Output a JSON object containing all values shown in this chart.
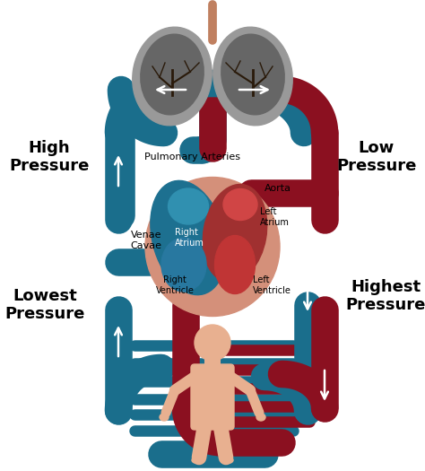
{
  "bg_color": "#ffffff",
  "teal": "#1a6e8c",
  "teal_light": "#2a8aaa",
  "dark_red": "#8b1020",
  "heart_pink": "#d4907a",
  "heart_red": "#c04040",
  "lung_outer": "#999999",
  "lung_inner": "#666666",
  "body_skin": "#e8b090",
  "white": "#ffffff",
  "labels": {
    "high_pressure": "High\nPressure",
    "low_pressure": "Low\nPressure",
    "lowest_pressure": "Lowest\nPressure",
    "highest_pressure": "Highest\nPressure",
    "pulmonary_arteries": "Pulmonary Arteries",
    "venae_cavae": "Venae\nCavae",
    "aorta": "Aorta",
    "left_atrium": "Left\nAtrium",
    "right_atrium": "Right\nAtrium",
    "right_ventricle": "Right\nVentricle",
    "left_ventricle": "Left\nVentricle"
  },
  "vessel_lw": 22,
  "pressure_fs": 13,
  "label_fs": 8
}
